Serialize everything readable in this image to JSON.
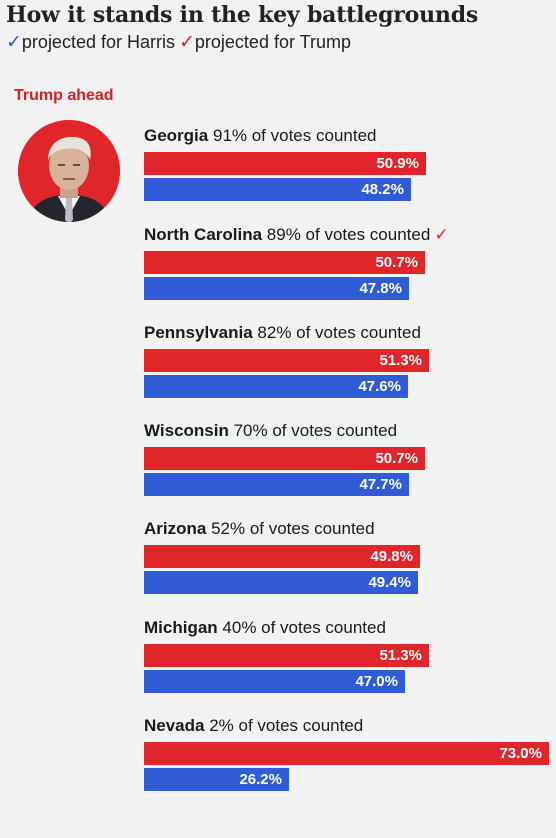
{
  "title": "How it stands in the key battlegrounds",
  "legend": {
    "harris_tick": "✓",
    "harris_label": "projected for Harris",
    "trump_tick": "✓",
    "trump_label": "projected for Trump"
  },
  "status_label": "Trump ahead",
  "colors": {
    "trump": "#e0252b",
    "harris": "#2f5cd6",
    "background": "#f2f2f2"
  },
  "chart_data": {
    "type": "bar",
    "orientation": "horizontal",
    "title": "How it stands in the key battlegrounds",
    "series": [
      {
        "name": "Trump",
        "color": "#e0252b"
      },
      {
        "name": "Harris",
        "color": "#2f5cd6"
      }
    ],
    "states": [
      {
        "name": "Georgia",
        "counted": "91% of votes counted",
        "trump": 50.9,
        "harris": 48.2,
        "trump_label": "50.9%",
        "harris_label": "48.2%",
        "projected": ""
      },
      {
        "name": "North Carolina",
        "counted": "89% of votes counted",
        "trump": 50.7,
        "harris": 47.8,
        "trump_label": "50.7%",
        "harris_label": "47.8%",
        "projected": "✓"
      },
      {
        "name": "Pennsylvania",
        "counted": "82% of votes counted",
        "trump": 51.3,
        "harris": 47.6,
        "trump_label": "51.3%",
        "harris_label": "47.6%",
        "projected": ""
      },
      {
        "name": "Wisconsin",
        "counted": "70% of votes counted",
        "trump": 50.7,
        "harris": 47.7,
        "trump_label": "50.7%",
        "harris_label": "47.7%",
        "projected": ""
      },
      {
        "name": "Arizona",
        "counted": "52% of votes counted",
        "trump": 49.8,
        "harris": 49.4,
        "trump_label": "49.8%",
        "harris_label": "49.4%",
        "projected": ""
      },
      {
        "name": "Michigan",
        "counted": "40% of votes counted",
        "trump": 51.3,
        "harris": 47.0,
        "trump_label": "51.3%",
        "harris_label": "47.0%",
        "projected": ""
      },
      {
        "name": "Nevada",
        "counted": "2% of votes counted",
        "trump": 73.0,
        "harris": 26.2,
        "trump_label": "73.0%",
        "harris_label": "26.2%",
        "projected": ""
      }
    ],
    "xlim": [
      0,
      73
    ]
  }
}
